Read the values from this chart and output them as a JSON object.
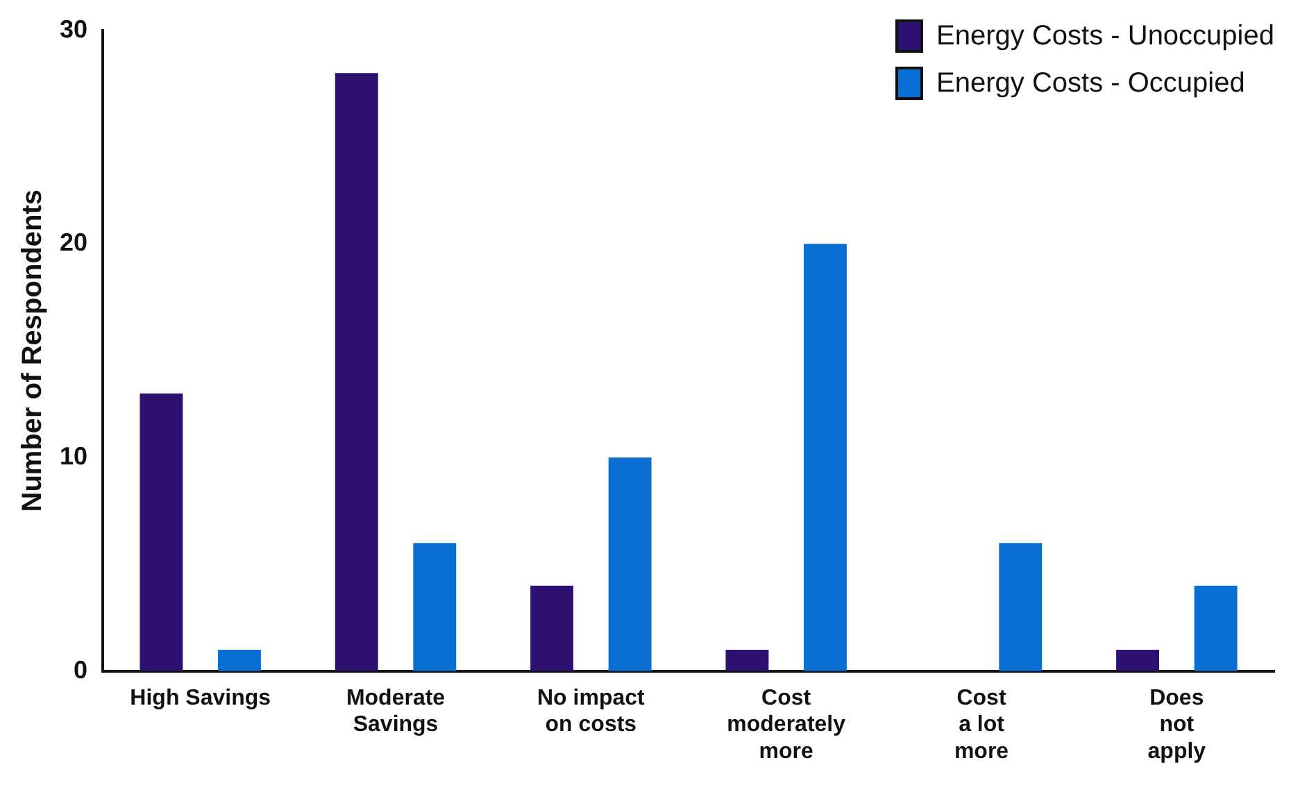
{
  "chart_data": {
    "type": "bar",
    "ylabel": "Number of Respondents",
    "categories": [
      "High Savings",
      "Moderate\nSavings",
      "No impact\non costs",
      "Cost\nmoderately\nmore",
      "Cost\na lot\nmore",
      "Does\nnot\napply"
    ],
    "series": [
      {
        "name": "Energy Costs - Unoccupied",
        "color": "#2e1070",
        "values": [
          13,
          28,
          4,
          1,
          0,
          1
        ]
      },
      {
        "name": "Energy Costs - Occupied",
        "color": "#0a6fd2",
        "values": [
          1,
          6,
          10,
          20,
          6,
          4
        ]
      }
    ],
    "ylim": [
      0,
      30
    ],
    "yticks": [
      0,
      10,
      20,
      30
    ],
    "grid": false,
    "legend": "top right"
  }
}
